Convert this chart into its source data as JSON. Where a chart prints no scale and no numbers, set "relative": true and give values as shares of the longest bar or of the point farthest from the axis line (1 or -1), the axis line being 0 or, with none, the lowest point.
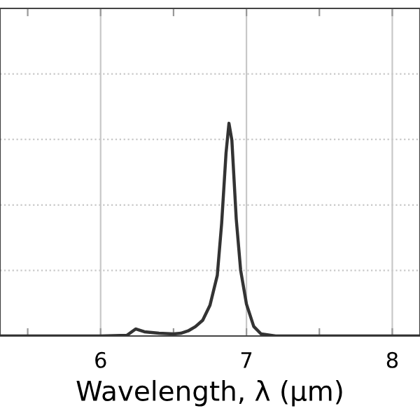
{
  "chart_data": {
    "type": "line",
    "xlabel": "Wavelength, λ (µm)",
    "relative": true,
    "grid": true,
    "marker": "none",
    "line_style": "solid",
    "xlim": [
      5.31,
      8.19
    ],
    "xticks": [
      {
        "value": 5.5,
        "label": null
      },
      6,
      {
        "value": 6.5,
        "label": null
      },
      7,
      {
        "value": 7.5,
        "label": null
      },
      8
    ],
    "x": [
      5.31,
      5.5,
      6.0,
      6.18,
      6.24,
      6.3,
      6.4,
      6.5,
      6.55,
      6.6,
      6.65,
      6.7,
      6.75,
      6.8,
      6.83,
      6.86,
      6.88,
      6.9,
      6.93,
      6.96,
      7.0,
      7.05,
      7.1,
      7.2,
      8.19
    ],
    "series": [
      {
        "color": "#333333",
        "values": [
          0,
          0,
          0,
          0.003,
          0.033,
          0.02,
          0.013,
          0.01,
          0.013,
          0.024,
          0.044,
          0.074,
          0.145,
          0.285,
          0.53,
          0.86,
          1.0,
          0.92,
          0.55,
          0.31,
          0.15,
          0.045,
          0.01,
          0,
          0
        ]
      }
    ]
  }
}
